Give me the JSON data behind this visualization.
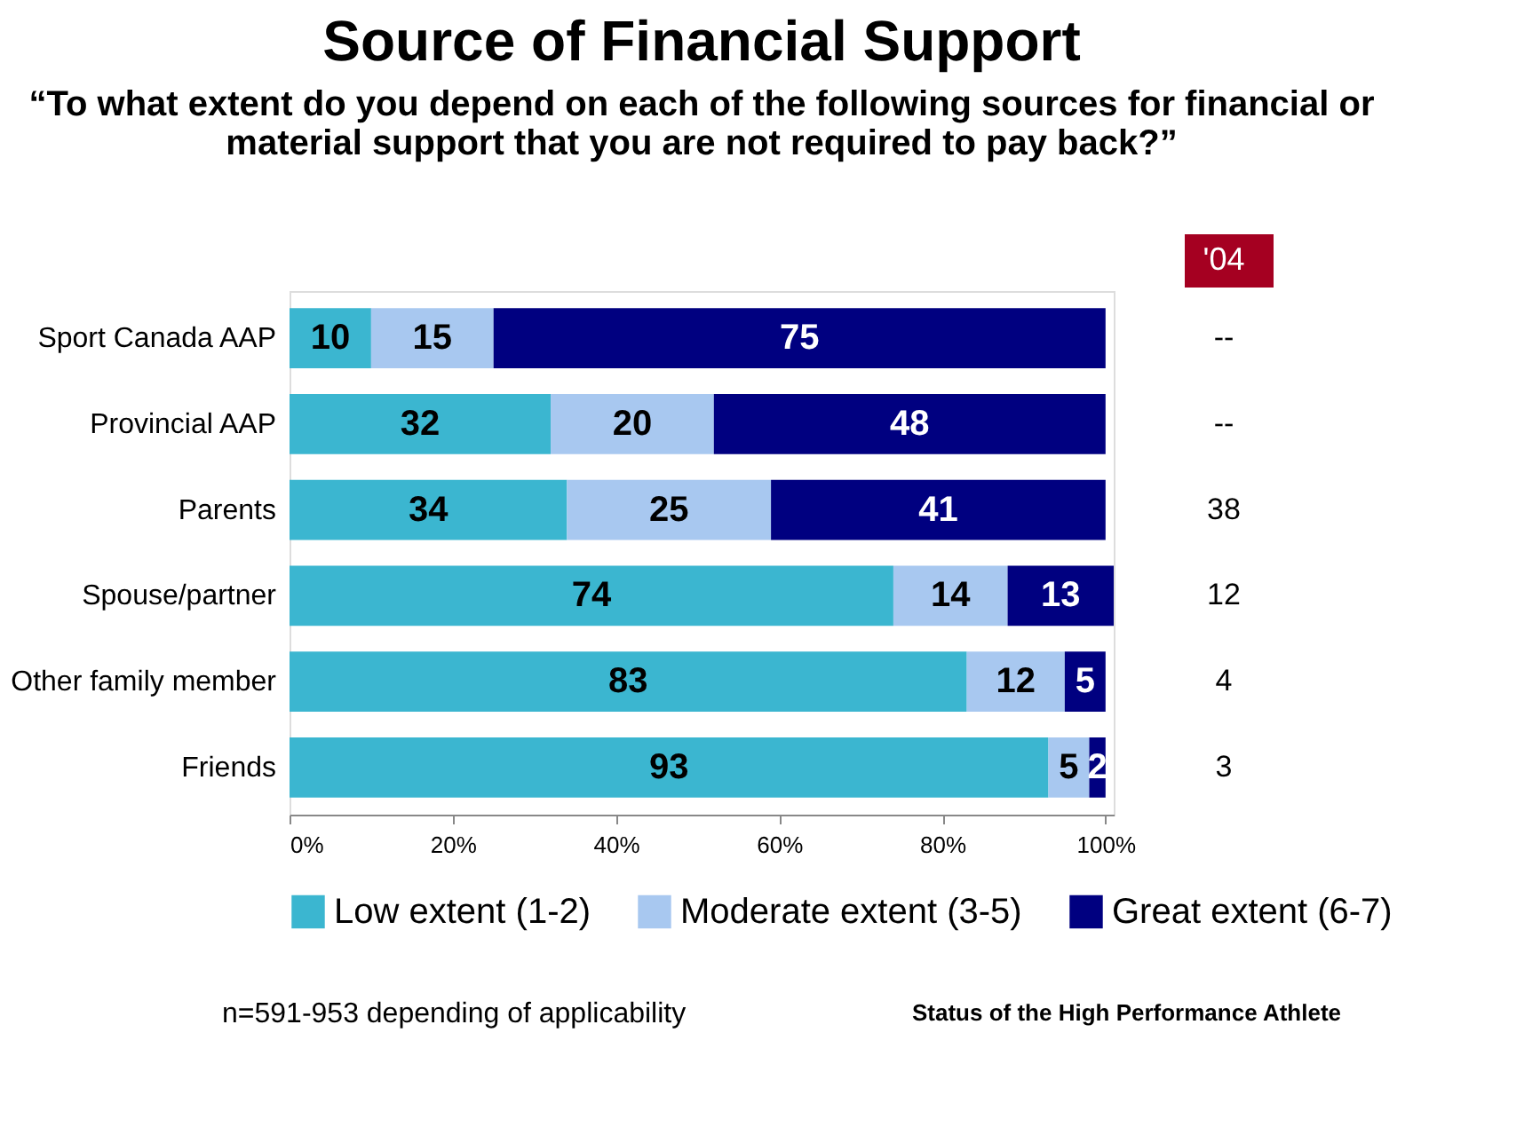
{
  "chart_data": {
    "type": "bar",
    "orientation": "horizontal",
    "stacked": true,
    "title": "Source of Financial Support",
    "subtitle": "“To what extent do you depend on each of the following sources for financial or material support that you are not required to pay back?”",
    "categories": [
      "Sport Canada AAP",
      "Provincial AAP",
      "Parents",
      "Spouse/partner",
      "Other family member",
      "Friends"
    ],
    "series": [
      {
        "name": "Low extent (1-2)",
        "color": "#3bb6d0",
        "values": [
          10,
          32,
          34,
          74,
          83,
          93
        ]
      },
      {
        "name": "Moderate extent (3-5)",
        "color": "#a8c8f0",
        "values": [
          15,
          20,
          25,
          14,
          12,
          5
        ]
      },
      {
        "name": "Great extent (6-7)",
        "color": "#000080",
        "values": [
          75,
          48,
          41,
          13,
          5,
          2
        ]
      }
    ],
    "data_labels": true,
    "xlim": [
      0,
      101
    ],
    "xticks": [
      {
        "value": 0,
        "label": "0%"
      },
      {
        "value": 20,
        "label": "20%"
      },
      {
        "value": 40,
        "label": "40%"
      },
      {
        "value": 60,
        "label": "60%"
      },
      {
        "value": 80,
        "label": "80%"
      },
      {
        "value": 100,
        "label": "100%"
      }
    ],
    "grid": false,
    "legend": "bottom",
    "annotations": [
      "'04",
      "--",
      "--",
      "38",
      "12",
      "4",
      "3",
      "n=591-953 depending of applicability",
      "Status of the High Performance Athlete"
    ]
  }
}
